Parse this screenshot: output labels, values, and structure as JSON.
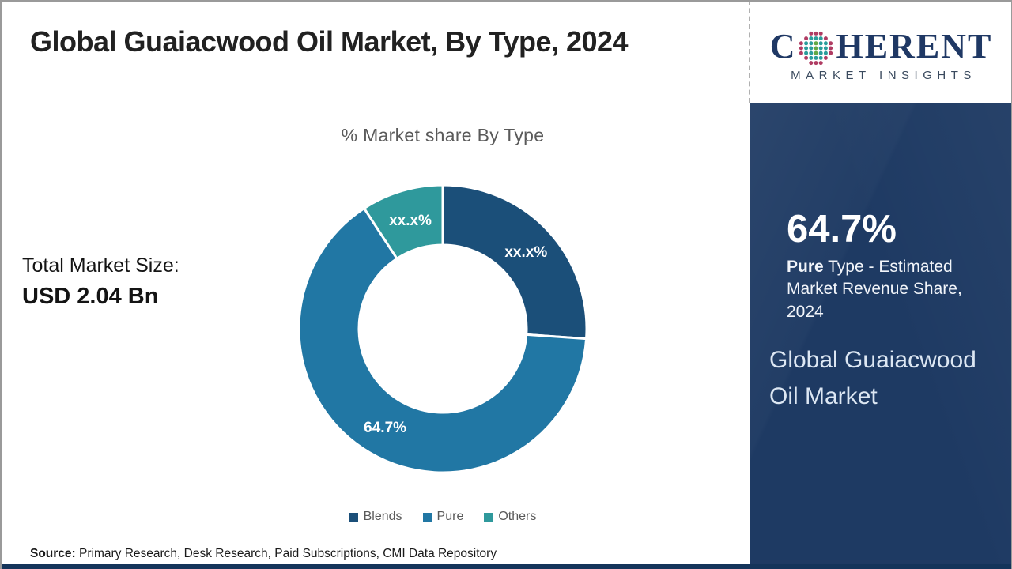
{
  "header": {
    "title": "Global Guaiacwood Oil Market, By Type, 2024"
  },
  "brand": {
    "name_prefix": "C",
    "name_suffix": "HERENT",
    "subtitle": "MARKET INSIGHTS",
    "navy": "#1f3864",
    "globe_colors": {
      "teal": "#2a9d9b",
      "green": "#63a844",
      "crimson": "#b03c63"
    }
  },
  "left_panel": {
    "label": "Total Market Size:",
    "value": "USD 2.04 Bn"
  },
  "chart_data": {
    "type": "donut",
    "title": "% Market share By Type",
    "categories": [
      "Blends",
      "Pure",
      "Others"
    ],
    "values": [
      26.1,
      64.7,
      9.2
    ],
    "display_labels": [
      "xx.x%",
      "64.7%",
      "xx.x%"
    ],
    "colors": [
      "#1b4f79",
      "#2177a4",
      "#2f999c"
    ],
    "start_angle_deg": 0,
    "direction": "clockwise",
    "inner_radius_ratio": 0.58,
    "legend_position": "bottom"
  },
  "sidebar": {
    "background": "#1e3a63",
    "share_value": "64.7%",
    "share_desc_bold": "Pure",
    "share_desc_rest": " Type - Estimated Market Revenue Share, 2024",
    "market_name": "Global Guaiacwood Oil Market"
  },
  "footer": {
    "source_label": "Source:",
    "source_text": " Primary Research, Desk Research, Paid Subscriptions, CMI Data Repository"
  }
}
